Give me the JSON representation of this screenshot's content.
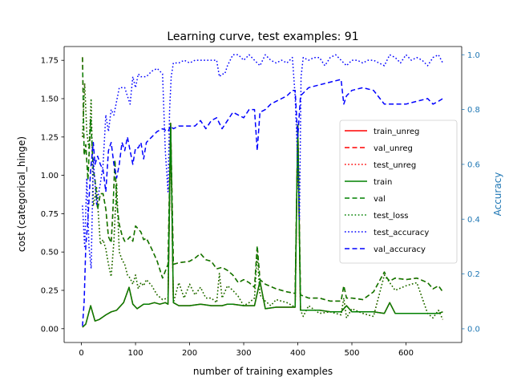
{
  "chart_data": {
    "type": "line",
    "title": "Learning curve, test examples: 91",
    "xlabel": "number of training examples",
    "ylabel": "cost (categorical_hinge)",
    "ylabel_right": "Accuracy",
    "xlim": [
      -32,
      703
    ],
    "ylim": [
      -0.09,
      1.84
    ],
    "ylim_right": [
      -0.05,
      1.03
    ],
    "xticks": [
      0,
      100,
      200,
      300,
      400,
      500,
      600
    ],
    "yticks": [
      0.0,
      0.25,
      0.5,
      0.75,
      1.0,
      1.25,
      1.5,
      1.75
    ],
    "yticks_right": [
      0.0,
      0.2,
      0.4,
      0.6,
      0.8,
      1.0
    ],
    "ytick_labels": [
      "0.00",
      "0.25",
      "0.50",
      "0.75",
      "1.00",
      "1.25",
      "1.50",
      "1.75"
    ],
    "ytick_labels_right": [
      "0.0",
      "0.2",
      "0.4",
      "0.6",
      "0.8",
      "1.0"
    ],
    "grid": false,
    "legend_position": "center-right",
    "colors": {
      "axis_right": "#1f77b4",
      "red": "#ff0000",
      "green": "#008000",
      "blue": "#0000ff"
    },
    "series": [
      {
        "name": "train_unreg",
        "axis": "left",
        "color": "#ff0000",
        "style": "solid",
        "x": [
          2,
          8,
          17,
          25,
          33,
          45,
          55,
          65,
          78,
          88,
          95,
          103,
          115,
          125,
          135,
          145,
          155,
          160,
          165,
          170,
          180,
          200,
          220,
          240,
          260,
          270,
          280,
          300,
          320,
          330,
          340,
          360,
          380,
          395,
          400,
          405,
          420,
          440,
          460,
          480,
          490,
          500,
          520,
          540,
          560,
          570,
          580,
          600,
          620,
          640,
          660,
          668
        ],
        "y": [
          0.01,
          0.03,
          0.15,
          0.05,
          0.06,
          0.09,
          0.11,
          0.12,
          0.17,
          0.27,
          0.16,
          0.13,
          0.16,
          0.16,
          0.17,
          0.16,
          0.17,
          0.16,
          1.34,
          0.17,
          0.15,
          0.15,
          0.16,
          0.15,
          0.15,
          0.16,
          0.16,
          0.15,
          0.15,
          0.31,
          0.13,
          0.14,
          0.14,
          0.14,
          1.33,
          0.12,
          0.12,
          0.12,
          0.11,
          0.11,
          0.15,
          0.11,
          0.11,
          0.11,
          0.1,
          0.17,
          0.1,
          0.1,
          0.1,
          0.1,
          0.1,
          0.11
        ]
      },
      {
        "name": "val_unreg",
        "axis": "left",
        "color": "#ff0000",
        "style": "dashed",
        "x": [
          2,
          5,
          8,
          12,
          17,
          22,
          25,
          30,
          35,
          40,
          45,
          50,
          55,
          58,
          62,
          65,
          70,
          75,
          80,
          85,
          90,
          95,
          100,
          105,
          110,
          115,
          120,
          130,
          140,
          150,
          160,
          165,
          170,
          180,
          200,
          210,
          220,
          230,
          240,
          250,
          260,
          270,
          280,
          290,
          300,
          310,
          320,
          325,
          330,
          340,
          360,
          380,
          395,
          400,
          405,
          420,
          440,
          460,
          480,
          485,
          490,
          500,
          520,
          540,
          560,
          565,
          570,
          580,
          600,
          620,
          640,
          650,
          660,
          668
        ],
        "y": [
          1.77,
          1.13,
          1.2,
          0.97,
          1.37,
          1.04,
          0.97,
          0.78,
          0.88,
          0.88,
          0.78,
          0.6,
          0.56,
          0.75,
          1.1,
          0.82,
          0.68,
          0.61,
          0.57,
          0.58,
          0.6,
          0.57,
          0.67,
          0.65,
          0.63,
          0.58,
          0.59,
          0.52,
          0.44,
          0.33,
          0.42,
          1.33,
          0.42,
          0.43,
          0.44,
          0.46,
          0.49,
          0.45,
          0.44,
          0.39,
          0.4,
          0.38,
          0.35,
          0.3,
          0.32,
          0.3,
          0.27,
          0.54,
          0.32,
          0.29,
          0.26,
          0.24,
          0.23,
          1.32,
          0.22,
          0.2,
          0.2,
          0.18,
          0.18,
          0.28,
          0.2,
          0.2,
          0.19,
          0.24,
          0.37,
          0.33,
          0.31,
          0.33,
          0.32,
          0.33,
          0.3,
          0.26,
          0.28,
          0.24
        ]
      },
      {
        "name": "test_unreg",
        "axis": "left",
        "color": "#ff0000",
        "style": "dotted",
        "x": [
          2,
          6,
          10,
          14,
          18,
          22,
          28,
          35,
          40,
          45,
          50,
          55,
          60,
          65,
          70,
          75,
          80,
          85,
          90,
          95,
          100,
          105,
          110,
          115,
          120,
          130,
          140,
          150,
          160,
          165,
          170,
          180,
          190,
          200,
          210,
          220,
          230,
          240,
          250,
          255,
          260,
          270,
          280,
          290,
          300,
          310,
          320,
          325,
          330,
          340,
          350,
          360,
          380,
          395,
          400,
          405,
          410,
          420,
          440,
          460,
          480,
          485,
          490,
          500,
          520,
          540,
          560,
          570,
          580,
          600,
          620,
          640,
          650,
          660,
          668
        ],
        "y": [
          1.25,
          1.6,
          1.28,
          1.17,
          1.5,
          0.8,
          0.92,
          0.55,
          0.58,
          0.52,
          0.42,
          0.34,
          0.57,
          0.95,
          0.5,
          0.45,
          0.42,
          0.35,
          0.33,
          0.29,
          0.35,
          0.26,
          0.3,
          0.28,
          0.32,
          0.28,
          0.22,
          0.19,
          0.2,
          1.3,
          0.17,
          0.3,
          0.2,
          0.29,
          0.22,
          0.27,
          0.2,
          0.2,
          0.17,
          0.36,
          0.2,
          0.28,
          0.25,
          0.21,
          0.15,
          0.17,
          0.2,
          0.49,
          0.22,
          0.18,
          0.15,
          0.19,
          0.17,
          0.14,
          1.32,
          0.12,
          0.08,
          0.15,
          0.1,
          0.11,
          0.09,
          0.2,
          0.07,
          0.13,
          0.1,
          0.08,
          0.35,
          0.3,
          0.25,
          0.28,
          0.3,
          0.1,
          0.07,
          0.12,
          0.06
        ]
      },
      {
        "name": "train",
        "axis": "left",
        "color": "#008000",
        "style": "solid",
        "x": [
          2,
          8,
          17,
          25,
          33,
          45,
          55,
          65,
          78,
          88,
          95,
          103,
          115,
          125,
          135,
          145,
          155,
          160,
          165,
          170,
          180,
          200,
          220,
          240,
          260,
          270,
          280,
          300,
          320,
          330,
          340,
          360,
          380,
          395,
          400,
          405,
          420,
          440,
          460,
          480,
          490,
          500,
          520,
          540,
          560,
          570,
          580,
          600,
          620,
          640,
          660,
          668
        ],
        "y": [
          0.01,
          0.03,
          0.15,
          0.05,
          0.06,
          0.09,
          0.11,
          0.12,
          0.17,
          0.27,
          0.16,
          0.13,
          0.16,
          0.16,
          0.17,
          0.16,
          0.17,
          0.16,
          1.34,
          0.17,
          0.15,
          0.15,
          0.16,
          0.15,
          0.15,
          0.16,
          0.16,
          0.15,
          0.15,
          0.31,
          0.13,
          0.14,
          0.14,
          0.14,
          1.33,
          0.12,
          0.12,
          0.12,
          0.11,
          0.11,
          0.15,
          0.11,
          0.11,
          0.11,
          0.1,
          0.17,
          0.1,
          0.1,
          0.1,
          0.1,
          0.1,
          0.11
        ]
      },
      {
        "name": "val",
        "axis": "left",
        "color": "#008000",
        "style": "dashed",
        "x": [
          2,
          5,
          8,
          12,
          17,
          22,
          25,
          30,
          35,
          40,
          45,
          50,
          55,
          58,
          62,
          65,
          70,
          75,
          80,
          85,
          90,
          95,
          100,
          105,
          110,
          115,
          120,
          130,
          140,
          150,
          160,
          165,
          170,
          180,
          200,
          210,
          220,
          230,
          240,
          250,
          260,
          270,
          280,
          290,
          300,
          310,
          320,
          325,
          330,
          340,
          360,
          380,
          395,
          400,
          405,
          420,
          440,
          460,
          480,
          485,
          490,
          500,
          520,
          540,
          560,
          565,
          570,
          580,
          600,
          620,
          640,
          650,
          660,
          668
        ],
        "y": [
          1.77,
          1.13,
          1.2,
          0.97,
          1.37,
          1.04,
          0.97,
          0.78,
          0.88,
          0.88,
          0.78,
          0.6,
          0.56,
          0.75,
          1.1,
          0.82,
          0.68,
          0.61,
          0.57,
          0.58,
          0.6,
          0.57,
          0.67,
          0.65,
          0.63,
          0.58,
          0.59,
          0.52,
          0.44,
          0.33,
          0.42,
          1.33,
          0.42,
          0.43,
          0.44,
          0.46,
          0.49,
          0.45,
          0.44,
          0.39,
          0.4,
          0.38,
          0.35,
          0.3,
          0.32,
          0.3,
          0.27,
          0.54,
          0.32,
          0.29,
          0.26,
          0.24,
          0.23,
          1.32,
          0.22,
          0.2,
          0.2,
          0.18,
          0.18,
          0.28,
          0.2,
          0.2,
          0.19,
          0.24,
          0.37,
          0.33,
          0.31,
          0.33,
          0.32,
          0.33,
          0.3,
          0.26,
          0.28,
          0.24
        ]
      },
      {
        "name": "test_loss",
        "axis": "left",
        "color": "#008000",
        "style": "dotted",
        "x": [
          2,
          6,
          10,
          14,
          18,
          22,
          28,
          35,
          40,
          45,
          50,
          55,
          60,
          65,
          70,
          75,
          80,
          85,
          90,
          95,
          100,
          105,
          110,
          115,
          120,
          130,
          140,
          150,
          160,
          165,
          170,
          180,
          190,
          200,
          210,
          220,
          230,
          240,
          250,
          255,
          260,
          270,
          280,
          290,
          300,
          310,
          320,
          325,
          330,
          340,
          350,
          360,
          380,
          395,
          400,
          405,
          410,
          420,
          440,
          460,
          480,
          485,
          490,
          500,
          520,
          540,
          560,
          570,
          580,
          600,
          620,
          640,
          650,
          660,
          668
        ],
        "y": [
          1.25,
          1.6,
          1.28,
          1.17,
          1.5,
          0.8,
          0.92,
          0.55,
          0.58,
          0.52,
          0.42,
          0.34,
          0.57,
          0.95,
          0.5,
          0.45,
          0.42,
          0.35,
          0.33,
          0.29,
          0.35,
          0.26,
          0.3,
          0.28,
          0.32,
          0.28,
          0.22,
          0.19,
          0.2,
          1.3,
          0.17,
          0.3,
          0.2,
          0.29,
          0.22,
          0.27,
          0.2,
          0.2,
          0.17,
          0.36,
          0.2,
          0.28,
          0.25,
          0.21,
          0.15,
          0.17,
          0.2,
          0.49,
          0.22,
          0.18,
          0.15,
          0.19,
          0.17,
          0.14,
          1.32,
          0.12,
          0.08,
          0.15,
          0.1,
          0.11,
          0.09,
          0.2,
          0.07,
          0.13,
          0.1,
          0.08,
          0.35,
          0.3,
          0.25,
          0.28,
          0.3,
          0.1,
          0.07,
          0.12,
          0.06
        ]
      },
      {
        "name": "test_accuracy",
        "axis": "right",
        "color": "#0000ff",
        "style": "dotted",
        "x": [
          2,
          6,
          10,
          14,
          18,
          22,
          28,
          35,
          40,
          45,
          50,
          55,
          60,
          70,
          80,
          90,
          95,
          100,
          105,
          110,
          120,
          130,
          140,
          150,
          155,
          160,
          163,
          166,
          170,
          180,
          190,
          200,
          210,
          220,
          230,
          240,
          250,
          255,
          260,
          265,
          270,
          280,
          290,
          300,
          310,
          320,
          330,
          340,
          350,
          360,
          370,
          380,
          390,
          395,
          400,
          403,
          406,
          410,
          420,
          430,
          440,
          450,
          460,
          470,
          480,
          490,
          500,
          510,
          520,
          530,
          540,
          550,
          560,
          570,
          580,
          590,
          600,
          610,
          620,
          630,
          640,
          650,
          660,
          668
        ],
        "y": [
          0.45,
          0.3,
          0.55,
          0.3,
          0.22,
          0.62,
          0.45,
          0.53,
          0.6,
          0.78,
          0.72,
          0.8,
          0.78,
          0.88,
          0.88,
          0.82,
          0.92,
          0.88,
          0.93,
          0.92,
          0.92,
          0.94,
          0.95,
          0.93,
          0.65,
          0.5,
          0.8,
          0.92,
          0.97,
          0.97,
          0.98,
          0.97,
          0.98,
          0.98,
          0.98,
          0.98,
          0.98,
          0.92,
          0.93,
          0.93,
          0.96,
          1.0,
          1.0,
          0.98,
          1.0,
          0.98,
          0.96,
          1.0,
          0.98,
          0.97,
          0.98,
          0.97,
          0.99,
          0.85,
          0.6,
          0.4,
          0.92,
          0.99,
          0.98,
          0.99,
          0.99,
          0.96,
          0.99,
          1.0,
          0.98,
          0.96,
          0.98,
          0.98,
          0.97,
          0.98,
          0.98,
          0.97,
          0.96,
          1.0,
          0.99,
          0.97,
          1.0,
          0.98,
          0.99,
          0.98,
          0.96,
          0.99,
          1.0,
          0.97
        ]
      },
      {
        "name": "val_accuracy",
        "axis": "right",
        "color": "#0000ff",
        "style": "dashed",
        "x": [
          2,
          5,
          8,
          12,
          17,
          22,
          25,
          30,
          35,
          40,
          45,
          50,
          55,
          60,
          65,
          70,
          75,
          80,
          85,
          90,
          95,
          100,
          105,
          110,
          115,
          120,
          130,
          140,
          150,
          160,
          165,
          170,
          180,
          190,
          200,
          210,
          220,
          230,
          240,
          250,
          260,
          270,
          280,
          290,
          300,
          310,
          320,
          325,
          330,
          340,
          350,
          360,
          380,
          390,
          395,
          400,
          405,
          420,
          440,
          460,
          480,
          485,
          490,
          500,
          520,
          540,
          560,
          570,
          580,
          600,
          620,
          640,
          650,
          660,
          668
        ],
        "y": [
          0.01,
          0.1,
          0.3,
          0.4,
          0.58,
          0.68,
          0.6,
          0.63,
          0.6,
          0.58,
          0.5,
          0.65,
          0.68,
          0.6,
          0.55,
          0.6,
          0.68,
          0.65,
          0.7,
          0.65,
          0.6,
          0.66,
          0.66,
          0.68,
          0.62,
          0.68,
          0.7,
          0.72,
          0.73,
          0.72,
          0.74,
          0.73,
          0.74,
          0.74,
          0.74,
          0.74,
          0.76,
          0.73,
          0.76,
          0.77,
          0.73,
          0.76,
          0.79,
          0.78,
          0.77,
          0.8,
          0.8,
          0.65,
          0.79,
          0.8,
          0.82,
          0.83,
          0.85,
          0.87,
          0.87,
          0.7,
          0.85,
          0.88,
          0.89,
          0.9,
          0.91,
          0.82,
          0.85,
          0.87,
          0.88,
          0.87,
          0.82,
          0.82,
          0.82,
          0.82,
          0.83,
          0.84,
          0.82,
          0.83,
          0.84
        ]
      }
    ]
  }
}
